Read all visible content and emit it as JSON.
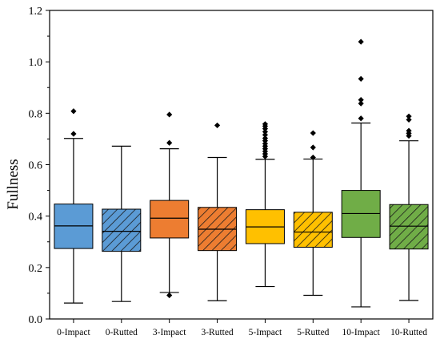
{
  "chart_data": {
    "type": "box",
    "title": "",
    "xlabel": "",
    "ylabel": "Fullness",
    "ylim": [
      0.0,
      1.2
    ],
    "yticks": [
      "0.0",
      "0.2",
      "0.4",
      "0.6",
      "0.8",
      "1.0",
      "1.2"
    ],
    "grid": false,
    "categories": [
      "0-Impact",
      "0-Rutted",
      "3-Impact",
      "3-Rutted",
      "5-Impact",
      "5-Rutted",
      "10-Impact",
      "10-Rutted"
    ],
    "boxes": [
      {
        "category": "0-Impact",
        "whisker_low": 0.062,
        "q1": 0.274,
        "median": 0.362,
        "q3": 0.447,
        "whisker_high": 0.702,
        "outliers": [
          0.72,
          0.808
        ],
        "color": "#5b9bd5",
        "hatched": false
      },
      {
        "category": "0-Rutted",
        "whisker_low": 0.068,
        "q1": 0.263,
        "median": 0.341,
        "q3": 0.427,
        "whisker_high": 0.672,
        "outliers": [],
        "color": "#5b9bd5",
        "hatched": true
      },
      {
        "category": "3-Impact",
        "whisker_low": 0.103,
        "q1": 0.315,
        "median": 0.392,
        "q3": 0.461,
        "whisker_high": 0.662,
        "outliers": [
          0.092,
          0.685,
          0.795
        ],
        "color": "#ed7d31",
        "hatched": false
      },
      {
        "category": "3-Rutted",
        "whisker_low": 0.071,
        "q1": 0.266,
        "median": 0.349,
        "q3": 0.434,
        "whisker_high": 0.628,
        "outliers": [
          0.753
        ],
        "color": "#ed7d31",
        "hatched": true
      },
      {
        "category": "5-Impact",
        "whisker_low": 0.126,
        "q1": 0.293,
        "median": 0.358,
        "q3": 0.425,
        "whisker_high": 0.621,
        "outliers": [
          0.632,
          0.642,
          0.652,
          0.662,
          0.672,
          0.682,
          0.693,
          0.703,
          0.716,
          0.728,
          0.74,
          0.75,
          0.758
        ],
        "color": "#ffc000",
        "hatched": false
      },
      {
        "category": "5-Rutted",
        "whisker_low": 0.092,
        "q1": 0.279,
        "median": 0.338,
        "q3": 0.415,
        "whisker_high": 0.622,
        "outliers": [
          0.628,
          0.667,
          0.723
        ],
        "color": "#ffc000",
        "hatched": true
      },
      {
        "category": "10-Impact",
        "whisker_low": 0.047,
        "q1": 0.317,
        "median": 0.41,
        "q3": 0.5,
        "whisker_high": 0.762,
        "outliers": [
          0.78,
          0.838,
          0.852,
          0.934,
          1.078
        ],
        "color": "#70ad47",
        "hatched": false
      },
      {
        "category": "10-Rutted",
        "whisker_low": 0.072,
        "q1": 0.272,
        "median": 0.361,
        "q3": 0.445,
        "whisker_high": 0.693,
        "outliers": [
          0.712,
          0.722,
          0.732,
          0.775,
          0.788
        ],
        "color": "#70ad47",
        "hatched": true
      }
    ]
  }
}
